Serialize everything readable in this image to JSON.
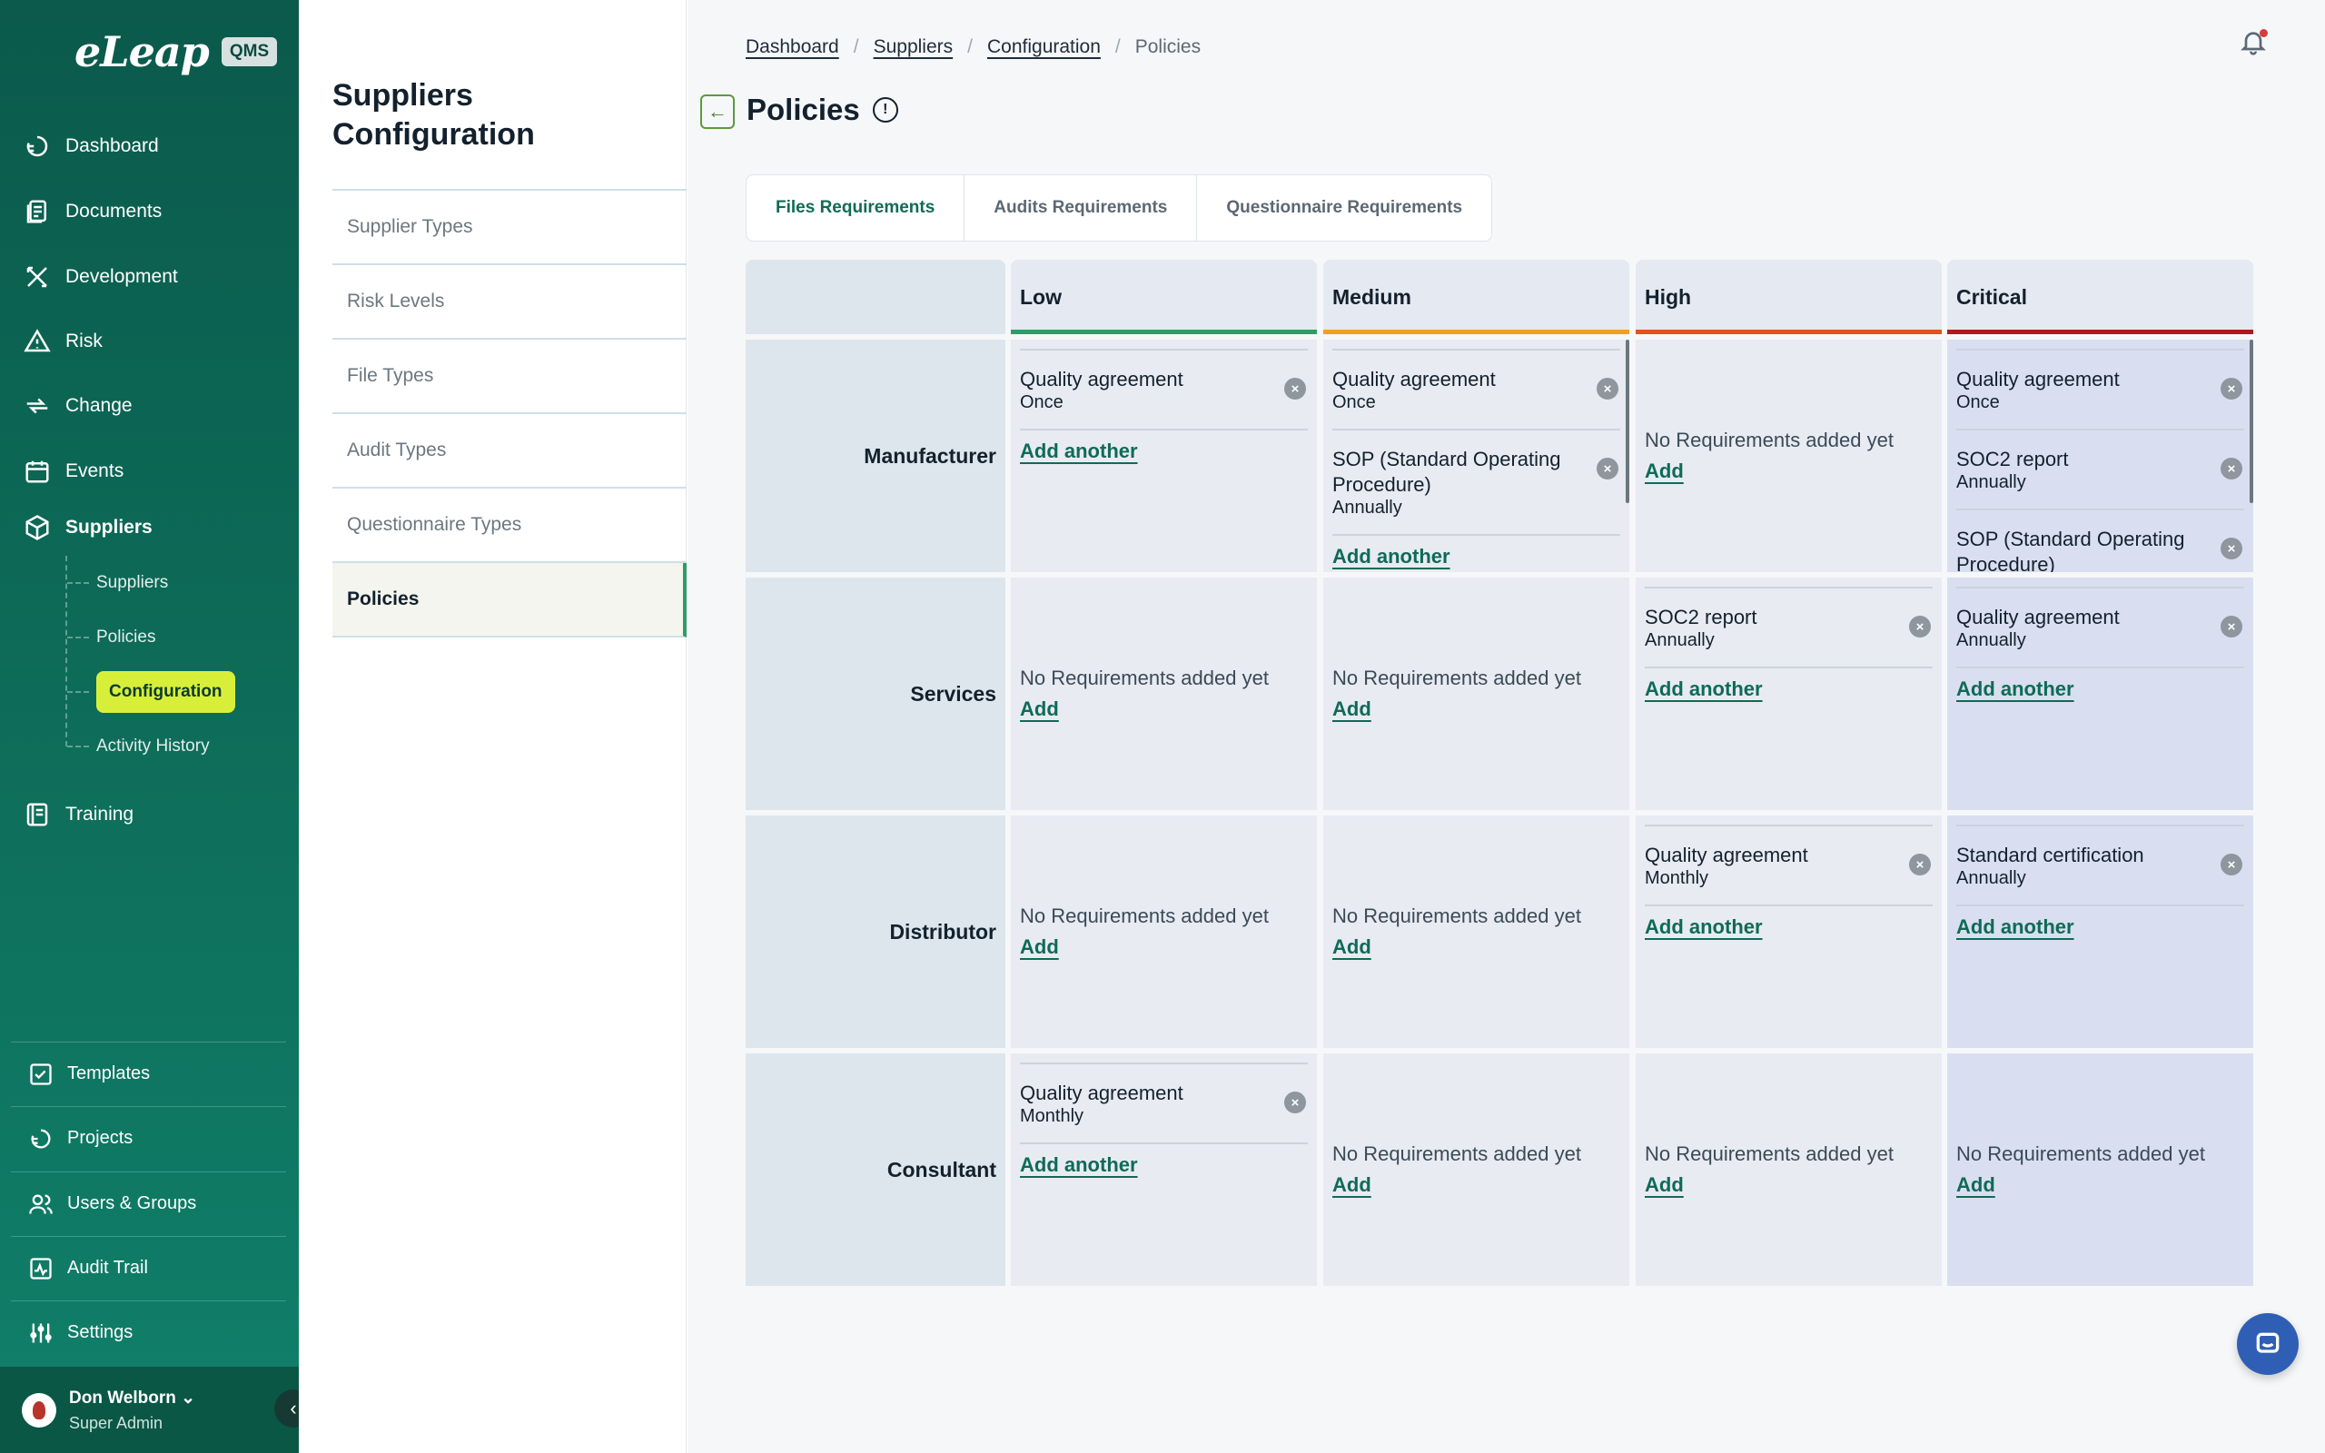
{
  "brand": {
    "logo": "eLeap",
    "badge": "QMS"
  },
  "nav": {
    "dashboard": "Dashboard",
    "documents": "Documents",
    "development": "Development",
    "risk": "Risk",
    "change": "Change",
    "events": "Events",
    "suppliers": "Suppliers",
    "training": "Training"
  },
  "subnav": {
    "suppliers": "Suppliers",
    "policies": "Policies",
    "configuration": "Configuration",
    "activity": "Activity History"
  },
  "bottom_nav": {
    "templates": "Templates",
    "projects": "Projects",
    "users": "Users & Groups",
    "audit": "Audit Trail",
    "settings": "Settings"
  },
  "user": {
    "name": "Don Welborn",
    "role": "Super Admin"
  },
  "config": {
    "title_line1": "Suppliers",
    "title_line2": "Configuration",
    "items": [
      "Supplier Types",
      "Risk Levels",
      "File Types",
      "Audit Types",
      "Questionnaire Types",
      "Policies"
    ]
  },
  "breadcrumb": [
    "Dashboard",
    "Suppliers",
    "Configuration",
    "Policies"
  ],
  "page_title": "Policies",
  "tabs": [
    "Files Requirements",
    "Audits Requirements",
    "Questionnaire Requirements"
  ],
  "columns": [
    "Low",
    "Medium",
    "High",
    "Critical"
  ],
  "column_colors": [
    "#2f9b68",
    "#f0a020",
    "#e0531f",
    "#b0181e"
  ],
  "rows": [
    "Manufacturer",
    "Services",
    "Distributor",
    "Consultant"
  ],
  "texts": {
    "empty": "No Requirements added yet",
    "add": "Add",
    "add_another": "Add another"
  },
  "cells": {
    "manufacturer": {
      "low": [
        {
          "name": "Quality agreement",
          "freq": "Once"
        }
      ],
      "medium": [
        {
          "name": "Quality agreement",
          "freq": "Once"
        },
        {
          "name": "SOP (Standard Operating Procedure)",
          "freq": "Annually"
        }
      ],
      "critical": [
        {
          "name": "Quality agreement",
          "freq": "Once"
        },
        {
          "name": "SOC2 report",
          "freq": "Annually"
        },
        {
          "name": "SOP (Standard Operating Procedure)",
          "freq": ""
        }
      ]
    },
    "services": {
      "high": [
        {
          "name": "SOC2 report",
          "freq": "Annually"
        }
      ],
      "critical": [
        {
          "name": "Quality agreement",
          "freq": "Annually"
        }
      ]
    },
    "distributor": {
      "high": [
        {
          "name": "Quality agreement",
          "freq": "Monthly"
        }
      ],
      "critical": [
        {
          "name": "Standard certification",
          "freq": "Annually"
        }
      ]
    },
    "consultant": {
      "low": [
        {
          "name": "Quality agreement",
          "freq": "Monthly"
        }
      ]
    }
  }
}
